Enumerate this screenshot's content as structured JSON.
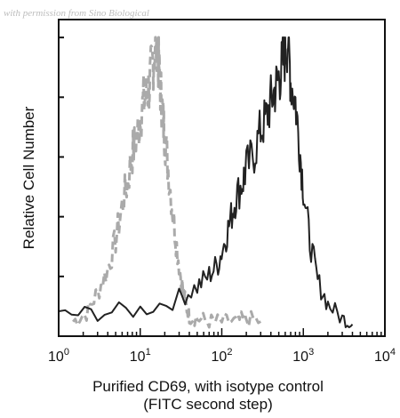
{
  "watermark": "with permission from Sino Biological",
  "chart_data": {
    "type": "line",
    "xlabel_line1": "Purified CD69, with isotype control",
    "xlabel_line2": "(FITC second step)",
    "ylabel": "Relative Cell Number",
    "xscale": "log",
    "xlim": [
      1,
      10000
    ],
    "x_ticks": [
      {
        "base": "10",
        "exp": "0"
      },
      {
        "base": "10",
        "exp": "1"
      },
      {
        "base": "10",
        "exp": "2"
      },
      {
        "base": "10",
        "exp": "3"
      },
      {
        "base": "10",
        "exp": "4"
      }
    ],
    "ylim": [
      0,
      1
    ],
    "grid": false,
    "series": [
      {
        "style": "dashed",
        "color": "#aaaaaa",
        "x": [
          1.5,
          2.2,
          3,
          4,
          5,
          6,
          7,
          8,
          9,
          10,
          11,
          12,
          13,
          14,
          15,
          16,
          17,
          18,
          19,
          20,
          22,
          25,
          28,
          32,
          36,
          40,
          50,
          70,
          100,
          150,
          200,
          300
        ],
        "y": [
          0.02,
          0.05,
          0.12,
          0.2,
          0.3,
          0.42,
          0.5,
          0.6,
          0.65,
          0.72,
          0.78,
          0.8,
          0.84,
          0.9,
          0.95,
          1.0,
          0.88,
          0.8,
          0.72,
          0.66,
          0.55,
          0.4,
          0.28,
          0.16,
          0.08,
          0.04,
          0.03,
          0.02,
          0.02,
          0.02,
          0.03,
          0.02
        ]
      },
      {
        "style": "solid",
        "color": "#222222",
        "x": [
          1,
          3,
          10,
          30,
          50,
          70,
          90,
          110,
          130,
          150,
          180,
          200,
          250,
          300,
          350,
          400,
          450,
          500,
          550,
          600,
          650,
          700,
          800,
          900,
          1000,
          1200,
          1500,
          2000,
          3000,
          4000
        ],
        "y": [
          0.04,
          0.05,
          0.06,
          0.1,
          0.14,
          0.18,
          0.22,
          0.3,
          0.38,
          0.45,
          0.5,
          0.55,
          0.6,
          0.68,
          0.72,
          0.78,
          0.82,
          0.86,
          0.9,
          0.95,
          1.0,
          0.85,
          0.78,
          0.62,
          0.48,
          0.3,
          0.16,
          0.08,
          0.03,
          0.01
        ]
      }
    ]
  }
}
